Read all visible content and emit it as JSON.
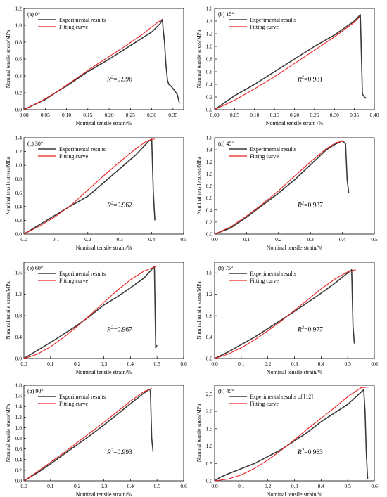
{
  "legend_labels": {
    "experimental": "Experimental results",
    "fitting": "Fitting curve"
  },
  "colors": {
    "experimental": "#3a3a3a",
    "fitting": "#e8211f",
    "axis": "#000000"
  },
  "chart_data": [
    {
      "type": "line",
      "panel_label": "(a) 0°",
      "ylabel": "Nominal tensile stress/MPa",
      "xlabel": "Nominal tensile strain/%",
      "xlim": [
        0,
        0.375
      ],
      "ylim": [
        0,
        1.2
      ],
      "xticks": [
        "0.00",
        "0.05",
        "0.10",
        "0.15",
        "0.20",
        "0.25",
        "0.30",
        "0.35"
      ],
      "xtick_values": [
        0,
        0.05,
        0.1,
        0.15,
        0.2,
        0.25,
        0.3,
        0.35
      ],
      "yticks": [
        "0.0",
        "0.2",
        "0.4",
        "0.6",
        "0.8",
        "1.0",
        "1.2"
      ],
      "ytick_values": [
        0,
        0.2,
        0.4,
        0.6,
        0.8,
        1.0,
        1.2
      ],
      "legend": [
        "Experimental results",
        "Fitting curve"
      ],
      "r2_label": "=0.996",
      "series": [
        {
          "name": "Experimental results",
          "x": [
            0,
            0.02,
            0.05,
            0.08,
            0.1,
            0.15,
            0.2,
            0.25,
            0.3,
            0.32,
            0.325,
            0.327,
            0.33,
            0.333,
            0.337,
            0.34,
            0.345,
            0.35,
            0.36,
            0.365
          ],
          "y": [
            0,
            0.05,
            0.12,
            0.22,
            0.28,
            0.45,
            0.6,
            0.76,
            0.92,
            1.02,
            1.07,
            0.95,
            0.8,
            0.55,
            0.35,
            0.3,
            0.28,
            0.25,
            0.18,
            0.08
          ]
        },
        {
          "name": "Fitting curve",
          "x": [
            0,
            0.04,
            0.08,
            0.12,
            0.16,
            0.2,
            0.24,
            0.28,
            0.31,
            0.325
          ],
          "y": [
            0,
            0.1,
            0.22,
            0.36,
            0.5,
            0.63,
            0.76,
            0.9,
            1.02,
            1.07
          ]
        }
      ]
    },
    {
      "type": "line",
      "panel_label": "(b) 15°",
      "ylabel": "Nominal tensile stress/MPa",
      "xlabel": "Nominal tensile strain /%",
      "xlim": [
        0,
        0.4
      ],
      "ylim": [
        0,
        1.6
      ],
      "xticks": [
        "0.00",
        "0.05",
        "0.10",
        "0.15",
        "0.20",
        "0.25",
        "0.30",
        "0.35",
        "0.40"
      ],
      "xtick_values": [
        0,
        0.05,
        0.1,
        0.15,
        0.2,
        0.25,
        0.3,
        0.35,
        0.4
      ],
      "yticks": [
        "0.0",
        "0.2",
        "0.4",
        "0.6",
        "0.8",
        "1.0",
        "1.2",
        "1.4",
        "1.6"
      ],
      "ytick_values": [
        0,
        0.2,
        0.4,
        0.6,
        0.8,
        1.0,
        1.2,
        1.4,
        1.6
      ],
      "legend": [
        "Experimental results",
        "Fitting curve"
      ],
      "r2_label": "=0.981",
      "series": [
        {
          "name": "Experimental results",
          "x": [
            0,
            0.05,
            0.1,
            0.15,
            0.2,
            0.25,
            0.3,
            0.35,
            0.365,
            0.368,
            0.37,
            0.375,
            0.38
          ],
          "y": [
            0,
            0.22,
            0.4,
            0.6,
            0.8,
            1.0,
            1.18,
            1.4,
            1.5,
            0.8,
            0.25,
            0.2,
            0.18
          ]
        },
        {
          "name": "Fitting curve",
          "x": [
            0,
            0.05,
            0.1,
            0.15,
            0.2,
            0.25,
            0.3,
            0.35,
            0.365
          ],
          "y": [
            0,
            0.15,
            0.33,
            0.52,
            0.73,
            0.94,
            1.15,
            1.38,
            1.48
          ]
        }
      ]
    },
    {
      "type": "line",
      "panel_label": "(c) 30°",
      "ylabel": "Nominal tensile stress/MPa",
      "xlabel": "Nominal tensile strain/%",
      "xlim": [
        0,
        0.5
      ],
      "ylim": [
        0,
        1.4
      ],
      "xticks": [
        "0.0",
        "0.1",
        "0.2",
        "0.3",
        "0.4",
        "0.5"
      ],
      "xtick_values": [
        0,
        0.1,
        0.2,
        0.3,
        0.4,
        0.5
      ],
      "yticks": [
        "0.0",
        "0.2",
        "0.4",
        "0.6",
        "0.8",
        "1.0",
        "1.2",
        "1.4"
      ],
      "ytick_values": [
        0,
        0.2,
        0.4,
        0.6,
        0.8,
        1.0,
        1.2,
        1.4
      ],
      "legend": [
        "Experimental results",
        "Fitting curve"
      ],
      "r2_label": "=0.962",
      "series": [
        {
          "name": "Experimental results",
          "x": [
            0,
            0.05,
            0.1,
            0.15,
            0.2,
            0.25,
            0.3,
            0.35,
            0.39,
            0.4,
            0.405,
            0.41
          ],
          "y": [
            0,
            0.14,
            0.28,
            0.42,
            0.55,
            0.75,
            0.95,
            1.15,
            1.35,
            1.38,
            0.6,
            0.2
          ]
        },
        {
          "name": "Fitting curve",
          "x": [
            0,
            0.05,
            0.1,
            0.15,
            0.2,
            0.25,
            0.3,
            0.35,
            0.38,
            0.4,
            0.41
          ],
          "y": [
            0,
            0.12,
            0.26,
            0.43,
            0.64,
            0.85,
            1.05,
            1.24,
            1.34,
            1.38,
            1.38
          ]
        }
      ]
    },
    {
      "type": "line",
      "panel_label": "(d) 45°",
      "ylabel": "Nominal tensile stress/MPa",
      "xlabel": "Nominal tensile strain/%",
      "xlim": [
        0,
        0.5
      ],
      "ylim": [
        0,
        1.6
      ],
      "xticks": [
        "0.0",
        "0.1",
        "0.2",
        "0.3",
        "0.4",
        "0.5"
      ],
      "xtick_values": [
        0,
        0.1,
        0.2,
        0.3,
        0.4,
        0.5
      ],
      "yticks": [
        "0.0",
        "0.2",
        "0.4",
        "0.6",
        "0.8",
        "1.0",
        "1.2",
        "1.4",
        "1.6"
      ],
      "ytick_values": [
        0,
        0.2,
        0.4,
        0.6,
        0.8,
        1.0,
        1.2,
        1.4,
        1.6
      ],
      "legend": [
        "Experimental results",
        "Fitting curve"
      ],
      "r2_label": "=0.987",
      "series": [
        {
          "name": "Experimental results",
          "x": [
            0,
            0.05,
            0.1,
            0.15,
            0.2,
            0.25,
            0.3,
            0.35,
            0.38,
            0.4,
            0.41,
            0.415,
            0.42
          ],
          "y": [
            0,
            0.1,
            0.28,
            0.48,
            0.68,
            0.9,
            1.15,
            1.4,
            1.5,
            1.55,
            1.5,
            0.9,
            0.68
          ]
        },
        {
          "name": "Fitting curve",
          "x": [
            0,
            0.05,
            0.1,
            0.15,
            0.2,
            0.25,
            0.3,
            0.35,
            0.38,
            0.41
          ],
          "y": [
            0,
            0.12,
            0.3,
            0.5,
            0.72,
            0.96,
            1.2,
            1.42,
            1.52,
            1.55
          ]
        }
      ]
    },
    {
      "type": "line",
      "panel_label": "(e) 60°",
      "ylabel": "Nominal tensile stress/MPa",
      "xlabel": "Nominal tensile strain/%",
      "xlim": [
        0,
        0.6
      ],
      "ylim": [
        0,
        1.8
      ],
      "xticks": [
        "0.0",
        "0.1",
        "0.2",
        "0.3",
        "0.4",
        "0.5",
        "0.6"
      ],
      "xtick_values": [
        0,
        0.1,
        0.2,
        0.3,
        0.4,
        0.5,
        0.6
      ],
      "yticks": [
        "0.0",
        "0.4",
        "0.8",
        "1.2",
        "1.6"
      ],
      "ytick_values": [
        0,
        0.4,
        0.8,
        1.2,
        1.6
      ],
      "legend": [
        "Experimental results",
        "Fitting curve"
      ],
      "r2_label": "=0.967",
      "series": [
        {
          "name": "Experimental results",
          "x": [
            0,
            0.05,
            0.1,
            0.15,
            0.2,
            0.25,
            0.3,
            0.35,
            0.4,
            0.45,
            0.49,
            0.495,
            0.5
          ],
          "y": [
            0,
            0.15,
            0.3,
            0.46,
            0.62,
            0.8,
            1.0,
            1.15,
            1.32,
            1.5,
            1.72,
            0.2,
            0.25
          ]
        },
        {
          "name": "Fitting curve",
          "x": [
            0,
            0.05,
            0.1,
            0.15,
            0.2,
            0.25,
            0.3,
            0.35,
            0.4,
            0.45,
            0.5
          ],
          "y": [
            0,
            0.08,
            0.22,
            0.4,
            0.6,
            0.82,
            1.05,
            1.27,
            1.47,
            1.63,
            1.73
          ]
        }
      ]
    },
    {
      "type": "line",
      "panel_label": "(f) 75°",
      "ylabel": "Nominal tensile stress/MPa",
      "xlabel": "Nominal tensile strain/%",
      "xlim": [
        0,
        0.6
      ],
      "ylim": [
        0,
        1.8
      ],
      "xticks": [
        "0.0",
        "0.1",
        "0.2",
        "0.3",
        "0.4",
        "0.5",
        "0.6"
      ],
      "xtick_values": [
        0,
        0.1,
        0.2,
        0.3,
        0.4,
        0.5,
        0.6
      ],
      "yticks": [
        "0.0",
        "0.4",
        "0.8",
        "1.2",
        "1.6"
      ],
      "ytick_values": [
        0,
        0.4,
        0.8,
        1.2,
        1.6
      ],
      "legend": [
        "Experimental results",
        "Fitting curve"
      ],
      "r2_label": "=0.977",
      "series": [
        {
          "name": "Experimental results",
          "x": [
            0,
            0.05,
            0.1,
            0.15,
            0.2,
            0.25,
            0.3,
            0.35,
            0.4,
            0.45,
            0.5,
            0.515,
            0.52,
            0.525
          ],
          "y": [
            0,
            0.12,
            0.26,
            0.4,
            0.56,
            0.72,
            0.88,
            1.05,
            1.22,
            1.4,
            1.6,
            1.66,
            0.6,
            0.28
          ]
        },
        {
          "name": "Fitting curve",
          "x": [
            0,
            0.05,
            0.1,
            0.15,
            0.2,
            0.25,
            0.3,
            0.35,
            0.4,
            0.45,
            0.5,
            0.53
          ],
          "y": [
            0,
            0.08,
            0.2,
            0.35,
            0.52,
            0.7,
            0.9,
            1.1,
            1.3,
            1.48,
            1.62,
            1.66
          ]
        }
      ]
    },
    {
      "type": "line",
      "panel_label": "(g) 90°",
      "ylabel": "Nominal tensile stress/MPa",
      "xlabel": "Nominal tensile strain/%",
      "xlim": [
        0,
        0.6
      ],
      "ylim": [
        0,
        1.8
      ],
      "xticks": [
        "0.0",
        "0.1",
        "0.2",
        "0.3",
        "0.4",
        "0.5",
        "0.6"
      ],
      "xtick_values": [
        0,
        0.1,
        0.2,
        0.3,
        0.4,
        0.5,
        0.6
      ],
      "yticks": [
        "0.0",
        "0.2",
        "0.4",
        "0.6",
        "0.8",
        "1.0",
        "1.2",
        "1.4",
        "1.6",
        "1.8"
      ],
      "ytick_values": [
        0,
        0.2,
        0.4,
        0.6,
        0.8,
        1.0,
        1.2,
        1.4,
        1.6,
        1.8
      ],
      "legend": [
        "Experimental results",
        "Fitting curve"
      ],
      "r2_label": "=0.993",
      "series": [
        {
          "name": "Experimental results",
          "x": [
            0,
            0.05,
            0.1,
            0.15,
            0.2,
            0.25,
            0.3,
            0.35,
            0.4,
            0.45,
            0.47,
            0.475,
            0.48,
            0.485
          ],
          "y": [
            0,
            0.15,
            0.32,
            0.5,
            0.68,
            0.86,
            1.05,
            1.25,
            1.45,
            1.65,
            1.72,
            1.7,
            0.8,
            0.55
          ]
        },
        {
          "name": "Fitting curve",
          "x": [
            0,
            0.05,
            0.1,
            0.15,
            0.2,
            0.25,
            0.3,
            0.35,
            0.4,
            0.45,
            0.48
          ],
          "y": [
            0,
            0.17,
            0.35,
            0.53,
            0.72,
            0.91,
            1.1,
            1.3,
            1.5,
            1.68,
            1.74
          ]
        }
      ]
    },
    {
      "type": "line",
      "panel_label": "(h) 45°",
      "ylabel": "Nominal tensile stress/MPa",
      "xlabel": "Nominal tensile strain/%",
      "xlim": [
        0,
        0.6
      ],
      "ylim": [
        0,
        2.75
      ],
      "xticks": [
        "0.0",
        "0.1",
        "0.2",
        "0.3",
        "0.4",
        "0.5",
        "0.6"
      ],
      "xtick_values": [
        0,
        0.1,
        0.2,
        0.3,
        0.4,
        0.5,
        0.6
      ],
      "yticks": [
        "0.0",
        "0.5",
        "1.0",
        "1.5",
        "2.0",
        "2.5"
      ],
      "ytick_values": [
        0,
        0.5,
        1.0,
        1.5,
        2.0,
        2.5
      ],
      "legend": [
        "Experimental results of [12]",
        "Fitting curve"
      ],
      "r2_label": "=0.963",
      "series": [
        {
          "name": "Experimental results of [12]",
          "x": [
            0,
            0.02,
            0.05,
            0.1,
            0.15,
            0.2,
            0.25,
            0.3,
            0.35,
            0.4,
            0.45,
            0.5,
            0.55,
            0.56,
            0.565,
            0.57,
            0.575
          ],
          "y": [
            0,
            0.1,
            0.2,
            0.35,
            0.5,
            0.7,
            0.9,
            1.15,
            1.4,
            1.7,
            1.95,
            2.2,
            2.55,
            2.62,
            2.0,
            0.8,
            0.05
          ]
        },
        {
          "name": "Fitting curve",
          "x": [
            0,
            0.05,
            0.1,
            0.15,
            0.2,
            0.25,
            0.3,
            0.35,
            0.4,
            0.45,
            0.5,
            0.55,
            0.58
          ],
          "y": [
            0,
            0.05,
            0.17,
            0.36,
            0.6,
            0.88,
            1.18,
            1.5,
            1.8,
            2.1,
            2.42,
            2.68,
            2.7
          ]
        }
      ]
    }
  ]
}
